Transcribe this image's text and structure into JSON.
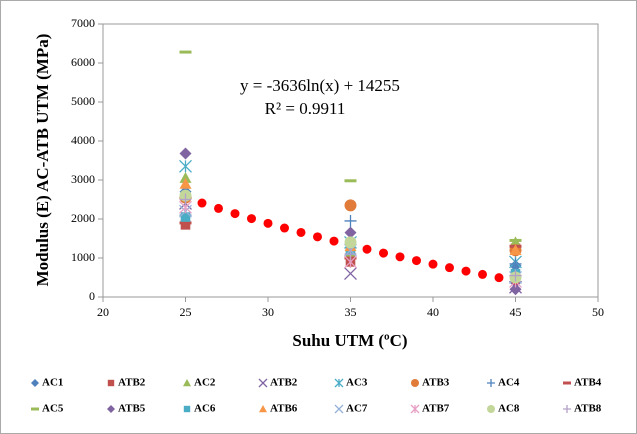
{
  "chart_data": {
    "type": "scatter",
    "y_label": "Modulus (E) AC-ATB UTM (MPa)",
    "x_label": "Suhu  UTM (ºC)",
    "annotations": [
      "y = -3636ln(x) + 14255",
      "R² = 0.9911"
    ],
    "xlim": [
      20,
      50
    ],
    "xticks": [
      20,
      25,
      30,
      35,
      40,
      45,
      50
    ],
    "ylim": [
      0,
      7000
    ],
    "yticks": [
      0,
      1000,
      2000,
      3000,
      4000,
      5000,
      6000,
      7000
    ],
    "grid": false,
    "legend": "bottom",
    "x": [
      25,
      35,
      45
    ],
    "series": [
      {
        "name": "AC1",
        "color": "#4f81bd",
        "marker": "diamond",
        "values": [
          2700,
          1100,
          800
        ]
      },
      {
        "name": "ATB2",
        "color": "#c0504d",
        "marker": "square",
        "values": [
          1850,
          900,
          1250
        ]
      },
      {
        "name": "AC2",
        "color": "#9bbb59",
        "marker": "triangle",
        "values": [
          3050,
          1100,
          1400
        ]
      },
      {
        "name": "ATB2",
        "color": "#8064a2",
        "marker": "x",
        "values": [
          2400,
          600,
          250
        ]
      },
      {
        "name": "AC3",
        "color": "#4bacc6",
        "marker": "asterisk",
        "values": [
          3350,
          1400,
          900
        ]
      },
      {
        "name": "ATB3",
        "color": "#e07b39",
        "marker": "circle",
        "values": [
          2550,
          2350,
          1200
        ]
      },
      {
        "name": "AC4",
        "color": "#4f81bd",
        "marker": "plus",
        "values": [
          2100,
          1950,
          850
        ]
      },
      {
        "name": "ATB4",
        "color": "#c0504d",
        "marker": "dash",
        "values": [
          1900,
          1000,
          1300
        ]
      },
      {
        "name": "AC5",
        "color": "#9bbb59",
        "marker": "dash",
        "values": [
          6280,
          2980,
          1450
        ]
      },
      {
        "name": "ATB5",
        "color": "#8064a2",
        "marker": "diamond",
        "values": [
          3680,
          1650,
          200
        ]
      },
      {
        "name": "AC6",
        "color": "#4bacc6",
        "marker": "square",
        "values": [
          2050,
          1200,
          600
        ]
      },
      {
        "name": "ATB6",
        "color": "#f79646",
        "marker": "triangle",
        "values": [
          2900,
          1300,
          1200
        ]
      },
      {
        "name": "AC7",
        "color": "#95b3d7",
        "marker": "x",
        "values": [
          2200,
          1200,
          500
        ]
      },
      {
        "name": "ATB7",
        "color": "#e6a0c4",
        "marker": "asterisk",
        "values": [
          2300,
          900,
          400
        ]
      },
      {
        "name": "AC8",
        "color": "#c4d79b",
        "marker": "circle",
        "values": [
          2600,
          1400,
          500
        ]
      },
      {
        "name": "ATB8",
        "color": "#b3a2c7",
        "marker": "plus",
        "values": [
          2500,
          1100,
          550
        ]
      }
    ],
    "trendline": {
      "color": "#ff0000",
      "x": [
        25,
        26,
        27,
        28,
        29,
        30,
        31,
        32,
        33,
        34,
        35,
        36,
        37,
        38,
        39,
        40,
        41,
        42,
        43,
        44,
        45
      ],
      "values": [
        2551,
        2409,
        2271,
        2139,
        2011,
        1888,
        1769,
        1654,
        1542,
        1433,
        1328,
        1225,
        1126,
        1029,
        934,
        842,
        752,
        665,
        579,
        496,
        414
      ]
    }
  }
}
